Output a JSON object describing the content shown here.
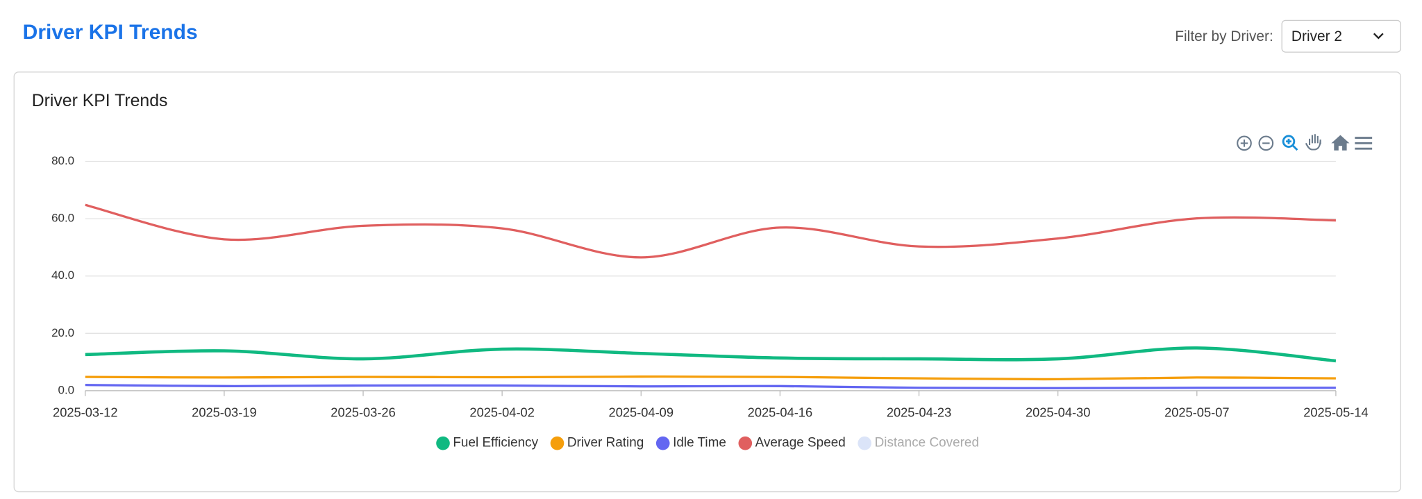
{
  "header": {
    "title": "Driver KPI Trends",
    "filter_label": "Filter by Driver:",
    "filter_value": "Driver 2"
  },
  "chart_data": {
    "type": "line",
    "title": "Driver KPI Trends",
    "categories": [
      "2025-03-12",
      "2025-03-19",
      "2025-03-26",
      "2025-04-02",
      "2025-04-09",
      "2025-04-16",
      "2025-04-23",
      "2025-04-30",
      "2025-05-07",
      "2025-05-14"
    ],
    "series": [
      {
        "name": "Fuel Efficiency",
        "color": "#10b981",
        "values": [
          12.6,
          13.9,
          11.1,
          14.5,
          13.0,
          11.4,
          11.1,
          11.1,
          14.9,
          10.4
        ]
      },
      {
        "name": "Driver Rating",
        "color": "#f59e0b",
        "values": [
          4.8,
          4.6,
          4.8,
          4.7,
          4.9,
          4.8,
          4.3,
          4.0,
          4.6,
          4.3
        ]
      },
      {
        "name": "Idle Time",
        "color": "#6366f1",
        "values": [
          2.0,
          1.6,
          1.8,
          1.8,
          1.5,
          1.6,
          1.0,
          0.9,
          1.0,
          1.0
        ]
      },
      {
        "name": "Average Speed",
        "color": "#e05f5f",
        "values": [
          64.8,
          52.8,
          57.5,
          56.6,
          46.5,
          56.9,
          50.3,
          53.1,
          60.1,
          59.4
        ]
      },
      {
        "name": "Distance Covered",
        "color": "#dbe4f8",
        "visible": false
      }
    ],
    "ylim": [
      0,
      80
    ],
    "yticks": [
      {
        "value": 0,
        "label": "0.0"
      },
      {
        "value": 20,
        "label": "20.0"
      },
      {
        "value": 40,
        "label": "40.0"
      },
      {
        "value": 60,
        "label": "60.0"
      },
      {
        "value": 80,
        "label": "80.0"
      }
    ],
    "grid": true,
    "legend": "bottom"
  }
}
